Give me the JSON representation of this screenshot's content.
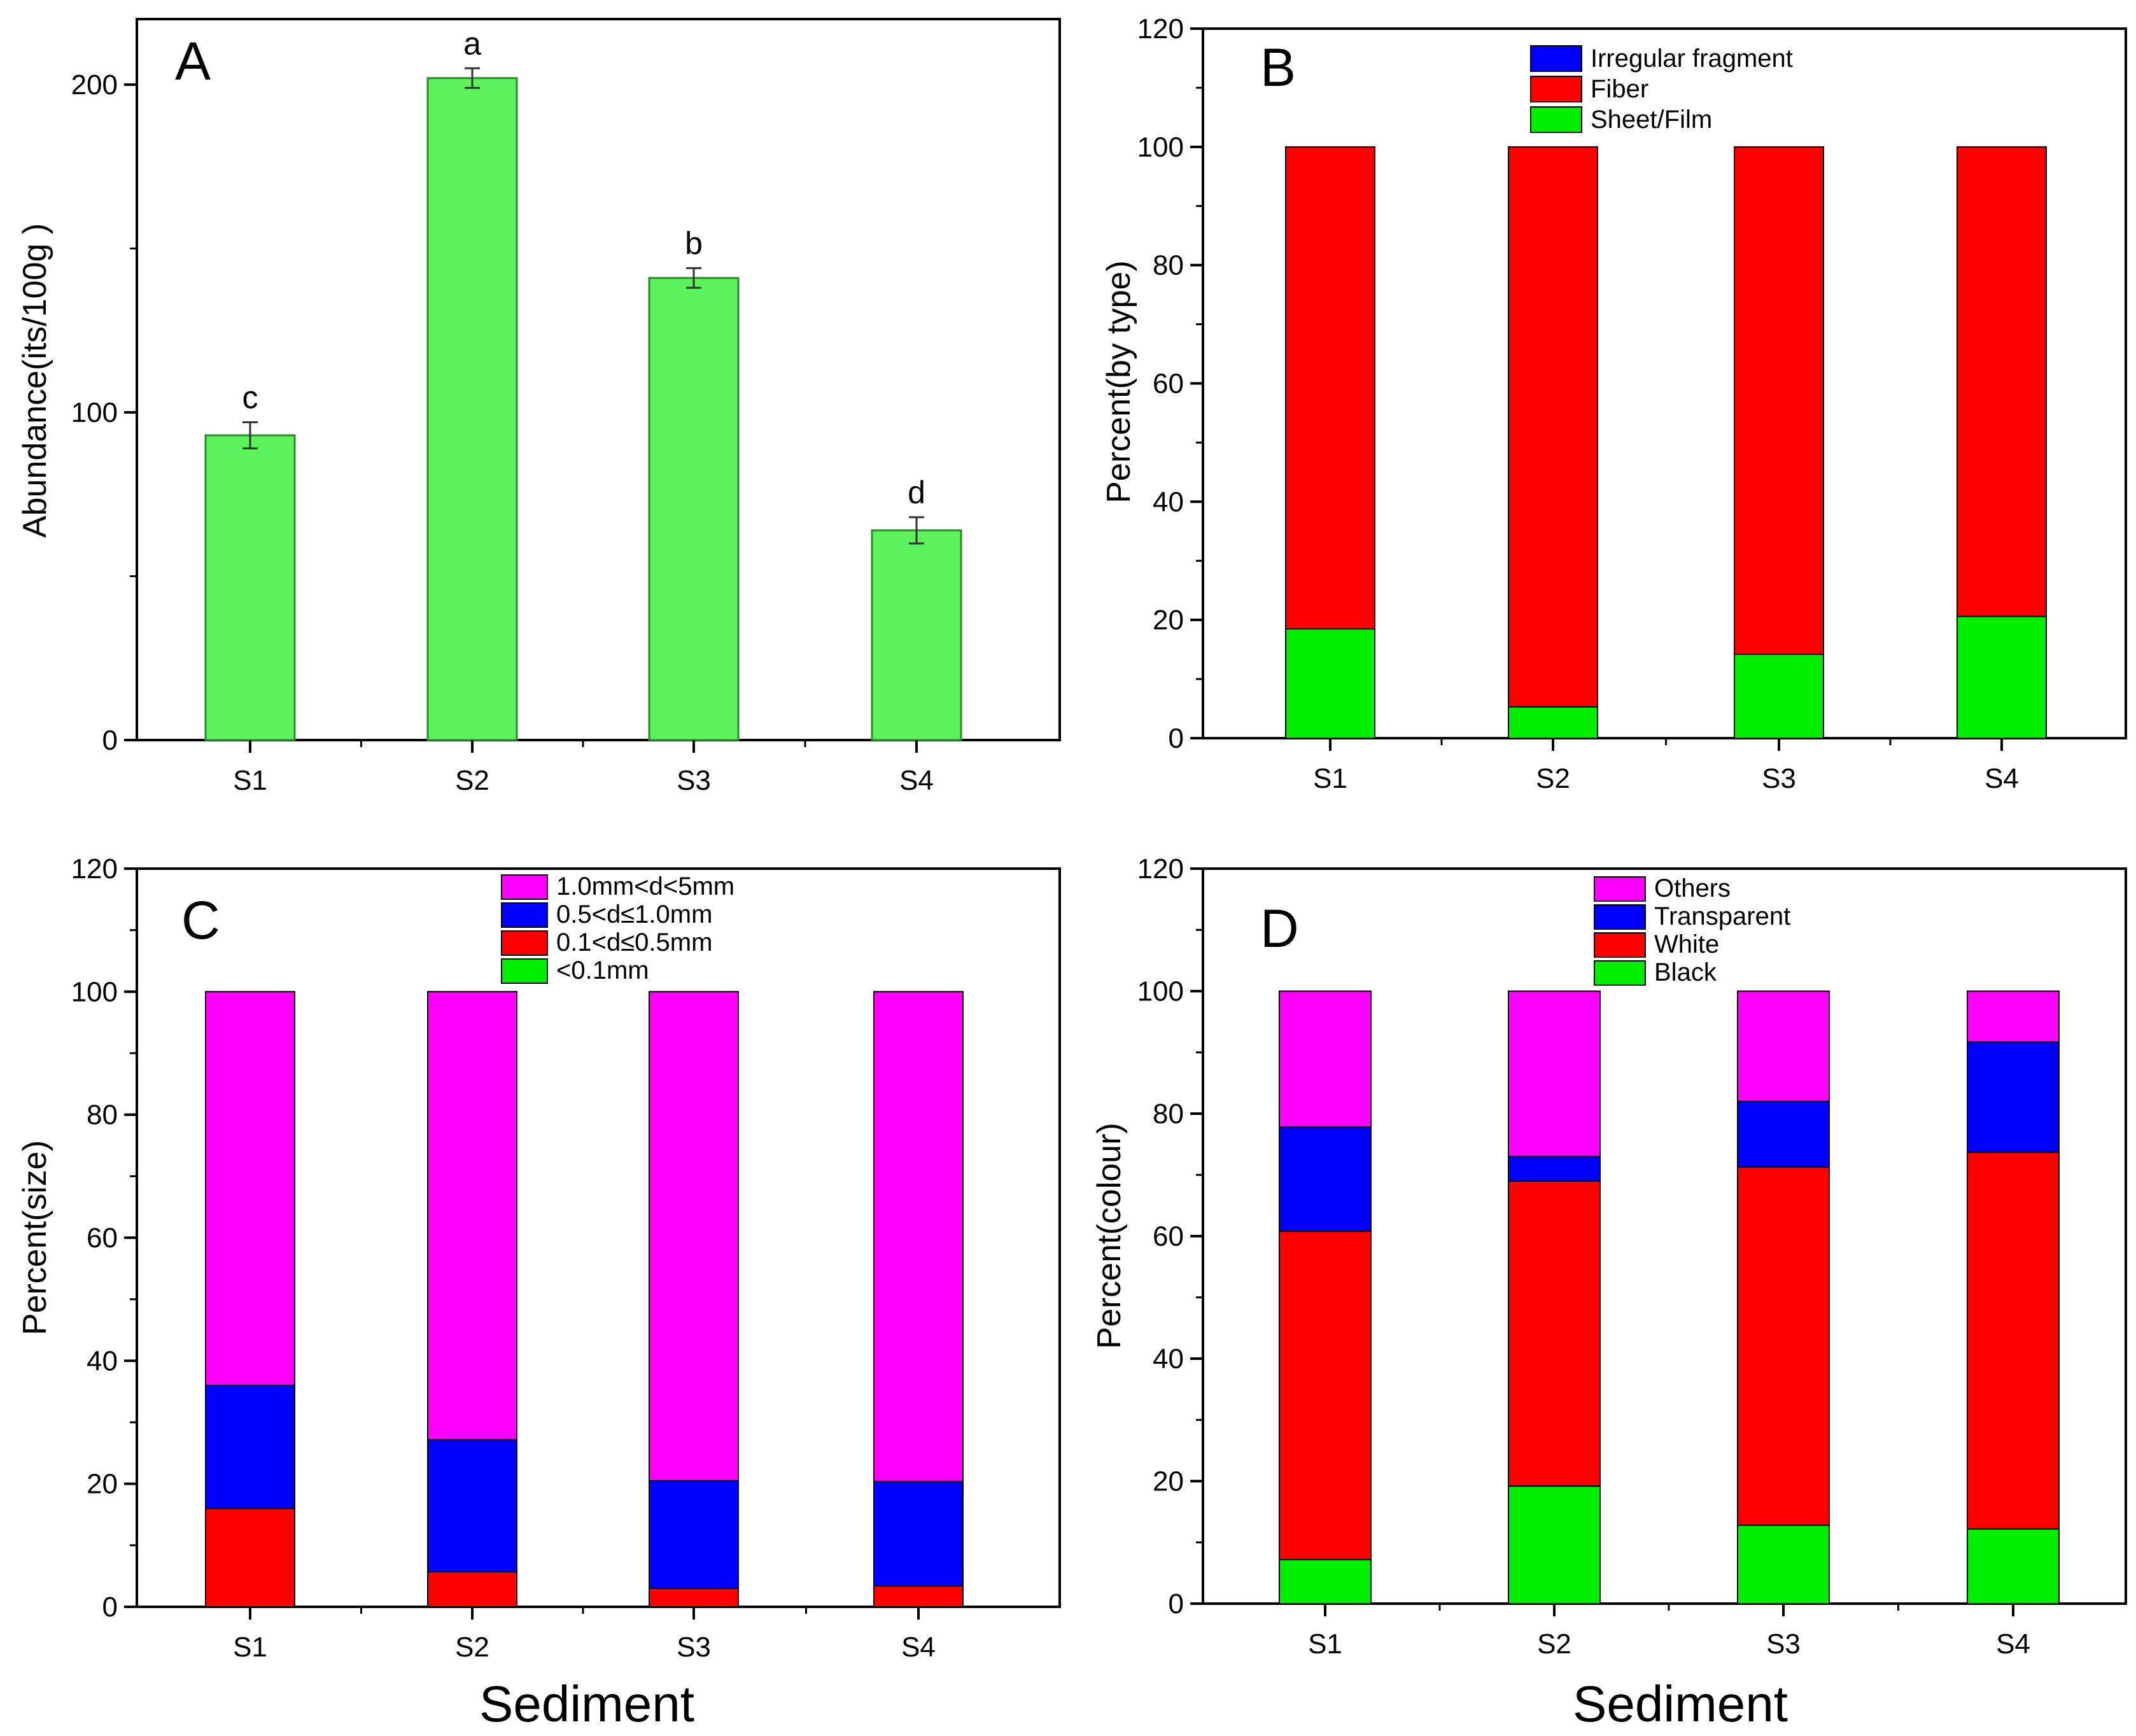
{
  "chart_data": [
    {
      "panel": "A",
      "type": "bar",
      "categories": [
        "S1",
        "S2",
        "S3",
        "S4"
      ],
      "values": [
        93,
        202,
        141,
        64
      ],
      "errors": [
        4,
        3,
        3,
        4
      ],
      "significance": [
        "c",
        "a",
        "b",
        "d"
      ],
      "xlabel": "",
      "ylabel": "Abundance(its/100g )",
      "ylim": [
        0,
        220
      ],
      "yticks": [
        0,
        100,
        200
      ],
      "color": "#5cf25c"
    },
    {
      "panel": "B",
      "type": "bar",
      "stacked": true,
      "categories": [
        "S1",
        "S2",
        "S3",
        "S4"
      ],
      "series": [
        {
          "name": "Sheet/Film",
          "color": "#00ee00",
          "values": [
            18.5,
            5.3,
            14.2,
            20.6
          ]
        },
        {
          "name": "Fiber",
          "color": "#ff0000",
          "values": [
            81.5,
            94.7,
            85.8,
            79.4
          ]
        },
        {
          "name": "Irregular fragment",
          "color": "#0000ff",
          "values": [
            0,
            0,
            0,
            0
          ]
        }
      ],
      "legend_order": [
        "Irregular fragment",
        "Fiber",
        "Sheet/Film"
      ],
      "legend_position": "top-center",
      "xlabel": "",
      "ylabel": "Percent(by type)",
      "ylim": [
        0,
        120
      ],
      "yticks": [
        0,
        20,
        40,
        60,
        80,
        100,
        120
      ]
    },
    {
      "panel": "C",
      "type": "bar",
      "stacked": true,
      "categories": [
        "S1",
        "S2",
        "S3",
        "S4"
      ],
      "series": [
        {
          "name": "<0.1mm",
          "color": "#00ee00",
          "values": [
            0,
            0,
            0,
            0
          ]
        },
        {
          "name": "0.1<d≤0.5mm",
          "color": "#ff0000",
          "values": [
            16.0,
            5.7,
            3.0,
            3.4
          ]
        },
        {
          "name": "0.5<d≤1.0mm",
          "color": "#0000ff",
          "values": [
            20.0,
            21.5,
            17.5,
            17.0
          ]
        },
        {
          "name": "1.0mm<d<5mm",
          "color": "#ff00ff",
          "values": [
            64.0,
            72.8,
            79.5,
            79.6
          ]
        }
      ],
      "legend_order": [
        "1.0mm<d<5mm",
        "0.5<d≤1.0mm",
        "0.1<d≤0.5mm",
        "<0.1mm"
      ],
      "legend_position": "top-center",
      "xlabel": "Sediment",
      "ylabel": "Percent(size)",
      "ylim": [
        0,
        120
      ],
      "yticks": [
        0,
        20,
        40,
        60,
        80,
        100,
        120
      ]
    },
    {
      "panel": "D",
      "type": "bar",
      "stacked": true,
      "categories": [
        "S1",
        "S2",
        "S3",
        "S4"
      ],
      "series": [
        {
          "name": "Black",
          "color": "#00ee00",
          "values": [
            7.2,
            19.2,
            12.8,
            12.2
          ]
        },
        {
          "name": "White",
          "color": "#ff0000",
          "values": [
            53.6,
            49.8,
            58.5,
            61.5
          ]
        },
        {
          "name": "Transparent",
          "color": "#0000ff",
          "values": [
            17.0,
            4.0,
            10.7,
            18.0
          ]
        },
        {
          "name": "Others",
          "color": "#ff00ff",
          "values": [
            22.2,
            27.0,
            18.0,
            8.3
          ]
        }
      ],
      "legend_order": [
        "Others",
        "Transparent",
        "White",
        "Black"
      ],
      "legend_position": "top-center",
      "xlabel": "Sediment",
      "ylabel": "Percent(colour)",
      "ylim": [
        0,
        120
      ],
      "yticks": [
        0,
        20,
        40,
        60,
        80,
        100,
        120
      ]
    }
  ]
}
